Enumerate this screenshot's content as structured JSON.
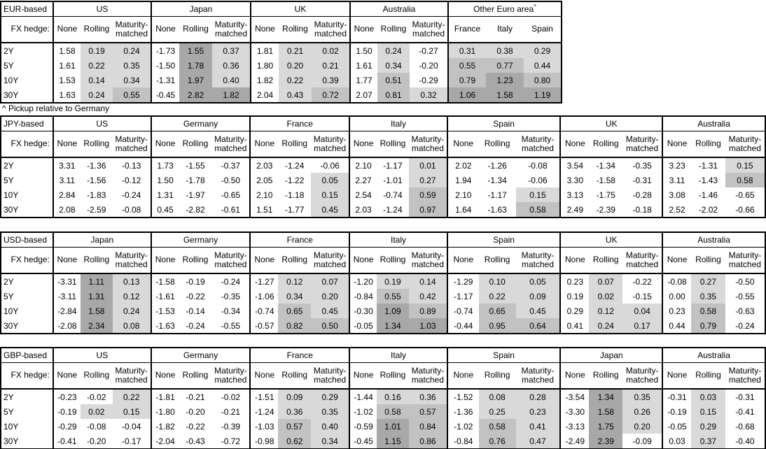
{
  "footnote": "^ Pickup relative to Germany",
  "fx_hedge_label": "FX hedge:",
  "tenors": [
    "2Y",
    "5Y",
    "10Y",
    "30Y"
  ],
  "colors": {
    "shade_light": "#d9d9d9",
    "shade_medium": "#c2c2c2",
    "shade_dark": "#a8a8a8",
    "cell_white": "#ffffff",
    "border": "#000000"
  },
  "shading_rule": {
    "description": "positive values shaded by magnitude; None column never shaded except pickup group",
    "bins": [
      {
        "range": "v < 0",
        "color": "cell_white"
      },
      {
        "range": "0 <= v < 0.5",
        "color": "shade_light"
      },
      {
        "range": "0.5 <= v < 1.0",
        "color": "shade_medium"
      },
      {
        "range": "v >= 1.0",
        "color": "shade_dark"
      }
    ]
  },
  "tables": [
    {
      "base": "EUR-based",
      "groups": [
        {
          "name": "US",
          "columns": [
            "None",
            "Rolling",
            "Maturity-matched"
          ],
          "rows": [
            [
              "1.58",
              "0.19",
              "0.24"
            ],
            [
              "1.61",
              "0.22",
              "0.35"
            ],
            [
              "1.53",
              "0.14",
              "0.34"
            ],
            [
              "1.63",
              "0.24",
              "0.55"
            ]
          ]
        },
        {
          "name": "Japan",
          "columns": [
            "None",
            "Rolling",
            "Maturity-matched"
          ],
          "rows": [
            [
              "-1.73",
              "1.55",
              "0.37"
            ],
            [
              "-1.50",
              "1.78",
              "0.36"
            ],
            [
              "-1.31",
              "1.97",
              "0.40"
            ],
            [
              "-0.45",
              "2.82",
              "1.82"
            ]
          ]
        },
        {
          "name": "UK",
          "columns": [
            "None",
            "Rolling",
            "Maturity-matched"
          ],
          "rows": [
            [
              "1.81",
              "0.21",
              "0.02"
            ],
            [
              "1.80",
              "0.20",
              "0.21"
            ],
            [
              "1.82",
              "0.22",
              "0.39"
            ],
            [
              "2.04",
              "0.43",
              "0.72"
            ]
          ]
        },
        {
          "name": "Australia",
          "columns": [
            "None",
            "Rolling",
            "Maturity-matched"
          ],
          "rows": [
            [
              "1.50",
              "0.24",
              "-0.27"
            ],
            [
              "1.61",
              "0.34",
              "-0.20"
            ],
            [
              "1.77",
              "0.51",
              "-0.29"
            ],
            [
              "2.07",
              "0.81",
              "0.32"
            ]
          ]
        },
        {
          "name": "Other Euro area",
          "sup": "^",
          "shade_all_columns": true,
          "columns": [
            "France",
            "Italy",
            "Spain"
          ],
          "rows": [
            [
              "0.31",
              "0.38",
              "0.29"
            ],
            [
              "0.55",
              "0.77",
              "0.44"
            ],
            [
              "0.79",
              "1.23",
              "0.80"
            ],
            [
              "1.06",
              "1.58",
              "1.19"
            ]
          ]
        }
      ]
    },
    {
      "base": "JPY-based",
      "groups": [
        {
          "name": "US",
          "columns": [
            "None",
            "Rolling",
            "Maturity-matched"
          ],
          "rows": [
            [
              "3.31",
              "-1.36",
              "-0.13"
            ],
            [
              "3.11",
              "-1.56",
              "-0.12"
            ],
            [
              "2.84",
              "-1.83",
              "-0.24"
            ],
            [
              "2.08",
              "-2.59",
              "-0.08"
            ]
          ]
        },
        {
          "name": "Germany",
          "columns": [
            "None",
            "Rolling",
            "Maturity-matched"
          ],
          "rows": [
            [
              "1.73",
              "-1.55",
              "-0.37"
            ],
            [
              "1.50",
              "-1.78",
              "-0.50"
            ],
            [
              "1.31",
              "-1.97",
              "-0.65"
            ],
            [
              "0.45",
              "-2.82",
              "-0.61"
            ]
          ]
        },
        {
          "name": "France",
          "columns": [
            "None",
            "Rolling",
            "Maturity-matched"
          ],
          "rows": [
            [
              "2.03",
              "-1.24",
              "-0.06"
            ],
            [
              "2.05",
              "-1.22",
              "0.05"
            ],
            [
              "2.10",
              "-1.18",
              "0.15"
            ],
            [
              "1.51",
              "-1.77",
              "0.45"
            ]
          ]
        },
        {
          "name": "Italy",
          "columns": [
            "None",
            "Rolling",
            "Maturity-matched"
          ],
          "rows": [
            [
              "2.10",
              "-1.17",
              "0.01"
            ],
            [
              "2.27",
              "-1.01",
              "0.27"
            ],
            [
              "2.54",
              "-0.74",
              "0.59"
            ],
            [
              "2.03",
              "-1.24",
              "0.97"
            ]
          ]
        },
        {
          "name": "Spain",
          "columns": [
            "None",
            "Rolling",
            "Maturity-matched"
          ],
          "rows": [
            [
              "2.02",
              "-1.26",
              "-0.08"
            ],
            [
              "1.94",
              "-1.34",
              "-0.06"
            ],
            [
              "2.10",
              "-1.17",
              "0.15"
            ],
            [
              "1.64",
              "-1.63",
              "0.58"
            ]
          ]
        },
        {
          "name": "UK",
          "columns": [
            "None",
            "Rolling",
            "Maturity-matched"
          ],
          "rows": [
            [
              "3.54",
              "-1.34",
              "-0.35"
            ],
            [
              "3.30",
              "-1.58",
              "-0.31"
            ],
            [
              "3.13",
              "-1.75",
              "-0.28"
            ],
            [
              "2.49",
              "-2.39",
              "-0.18"
            ]
          ]
        },
        {
          "name": "Australia",
          "columns": [
            "None",
            "Rolling",
            "Maturity-matched"
          ],
          "rows": [
            [
              "3.23",
              "-1.31",
              "0.15"
            ],
            [
              "3.11",
              "-1.43",
              "0.58"
            ],
            [
              "3.08",
              "-1.46",
              "-0.65"
            ],
            [
              "2.52",
              "-2.02",
              "-0.66"
            ]
          ]
        }
      ]
    },
    {
      "base": "USD-based",
      "groups": [
        {
          "name": "Japan",
          "columns": [
            "None",
            "Rolling",
            "Maturity-matched"
          ],
          "rows": [
            [
              "-3.31",
              "1.11",
              "0.13"
            ],
            [
              "-3.11",
              "1.31",
              "0.12"
            ],
            [
              "-2.84",
              "1.58",
              "0.24"
            ],
            [
              "-2.08",
              "2.34",
              "0.08"
            ]
          ]
        },
        {
          "name": "Germany",
          "columns": [
            "None",
            "Rolling",
            "Maturity-matched"
          ],
          "rows": [
            [
              "-1.58",
              "-0.19",
              "-0.24"
            ],
            [
              "-1.61",
              "-0.22",
              "-0.35"
            ],
            [
              "-1.53",
              "-0.14",
              "-0.34"
            ],
            [
              "-1.63",
              "-0.24",
              "-0.55"
            ]
          ]
        },
        {
          "name": "France",
          "columns": [
            "None",
            "Rolling",
            "Maturity-matched"
          ],
          "rows": [
            [
              "-1.27",
              "0.12",
              "0.07"
            ],
            [
              "-1.06",
              "0.34",
              "0.20"
            ],
            [
              "-0.74",
              "0.65",
              "0.45"
            ],
            [
              "-0.57",
              "0.82",
              "0.50"
            ]
          ]
        },
        {
          "name": "Italy",
          "columns": [
            "None",
            "Rolling",
            "Maturity-matched"
          ],
          "rows": [
            [
              "-1.20",
              "0.19",
              "0.14"
            ],
            [
              "-0.84",
              "0.55",
              "0.42"
            ],
            [
              "-0.30",
              "1.09",
              "0.89"
            ],
            [
              "-0.05",
              "1.34",
              "1.03"
            ]
          ]
        },
        {
          "name": "Spain",
          "columns": [
            "None",
            "Rolling",
            "Maturity-matched"
          ],
          "rows": [
            [
              "-1.29",
              "0.10",
              "0.05"
            ],
            [
              "-1.17",
              "0.22",
              "0.09"
            ],
            [
              "-0.74",
              "0.65",
              "0.45"
            ],
            [
              "-0.44",
              "0.95",
              "0.64"
            ]
          ]
        },
        {
          "name": "UK",
          "columns": [
            "None",
            "Rolling",
            "Maturity-matched"
          ],
          "rows": [
            [
              "0.23",
              "0.07",
              "-0.22"
            ],
            [
              "0.19",
              "0.02",
              "-0.15"
            ],
            [
              "0.29",
              "0.12",
              "0.04"
            ],
            [
              "0.41",
              "0.24",
              "0.17"
            ]
          ]
        },
        {
          "name": "Australia",
          "columns": [
            "None",
            "Rolling",
            "Maturity-matched"
          ],
          "rows": [
            [
              "-0.08",
              "0.27",
              "-0.50"
            ],
            [
              "0.00",
              "0.35",
              "-0.55"
            ],
            [
              "0.23",
              "0.58",
              "-0.63"
            ],
            [
              "0.44",
              "0.79",
              "-0.24"
            ]
          ]
        }
      ]
    },
    {
      "base": "GBP-based",
      "groups": [
        {
          "name": "US",
          "columns": [
            "None",
            "Rolling",
            "Maturity-matched"
          ],
          "rows": [
            [
              "-0.23",
              "-0.02",
              "0.22"
            ],
            [
              "-0.19",
              "0.02",
              "0.15"
            ],
            [
              "-0.29",
              "-0.08",
              "-0.04"
            ],
            [
              "-0.41",
              "-0.20",
              "-0.17"
            ]
          ]
        },
        {
          "name": "Germany",
          "columns": [
            "None",
            "Rolling",
            "Maturity-matched"
          ],
          "rows": [
            [
              "-1.81",
              "-0.21",
              "-0.02"
            ],
            [
              "-1.80",
              "-0.20",
              "-0.21"
            ],
            [
              "-1.82",
              "-0.22",
              "-0.39"
            ],
            [
              "-2.04",
              "-0.43",
              "-0.72"
            ]
          ]
        },
        {
          "name": "France",
          "columns": [
            "None",
            "Rolling",
            "Maturity-matched"
          ],
          "rows": [
            [
              "-1.51",
              "0.09",
              "0.29"
            ],
            [
              "-1.24",
              "0.36",
              "0.35"
            ],
            [
              "-1.03",
              "0.57",
              "0.40"
            ],
            [
              "-0.98",
              "0.62",
              "0.34"
            ]
          ]
        },
        {
          "name": "Italy",
          "columns": [
            "None",
            "Rolling",
            "Maturity-matched"
          ],
          "rows": [
            [
              "-1.44",
              "0.16",
              "0.36"
            ],
            [
              "-1.02",
              "0.58",
              "0.57"
            ],
            [
              "-0.59",
              "1.01",
              "0.84"
            ],
            [
              "-0.45",
              "1.15",
              "0.86"
            ]
          ]
        },
        {
          "name": "Spain",
          "columns": [
            "None",
            "Rolling",
            "Maturity-matched"
          ],
          "rows": [
            [
              "-1.52",
              "0.08",
              "0.28"
            ],
            [
              "-1.36",
              "0.25",
              "0.23"
            ],
            [
              "-1.02",
              "0.58",
              "0.41"
            ],
            [
              "-0.84",
              "0.76",
              "0.47"
            ]
          ]
        },
        {
          "name": "Japan",
          "columns": [
            "None",
            "Rolling",
            "Maturity-matched"
          ],
          "rows": [
            [
              "-3.54",
              "1.34",
              "0.35"
            ],
            [
              "-3.30",
              "1.58",
              "0.26"
            ],
            [
              "-3.13",
              "1.75",
              "0.20"
            ],
            [
              "-2.49",
              "2.39",
              "-0.09"
            ]
          ]
        },
        {
          "name": "Australia",
          "columns": [
            "None",
            "Rolling",
            "Maturity-matched"
          ],
          "rows": [
            [
              "-0.31",
              "0.03",
              "-0.31"
            ],
            [
              "-0.19",
              "0.15",
              "-0.41"
            ],
            [
              "-0.05",
              "0.29",
              "-0.68"
            ],
            [
              "0.03",
              "0.37",
              "-0.40"
            ]
          ]
        }
      ]
    }
  ]
}
